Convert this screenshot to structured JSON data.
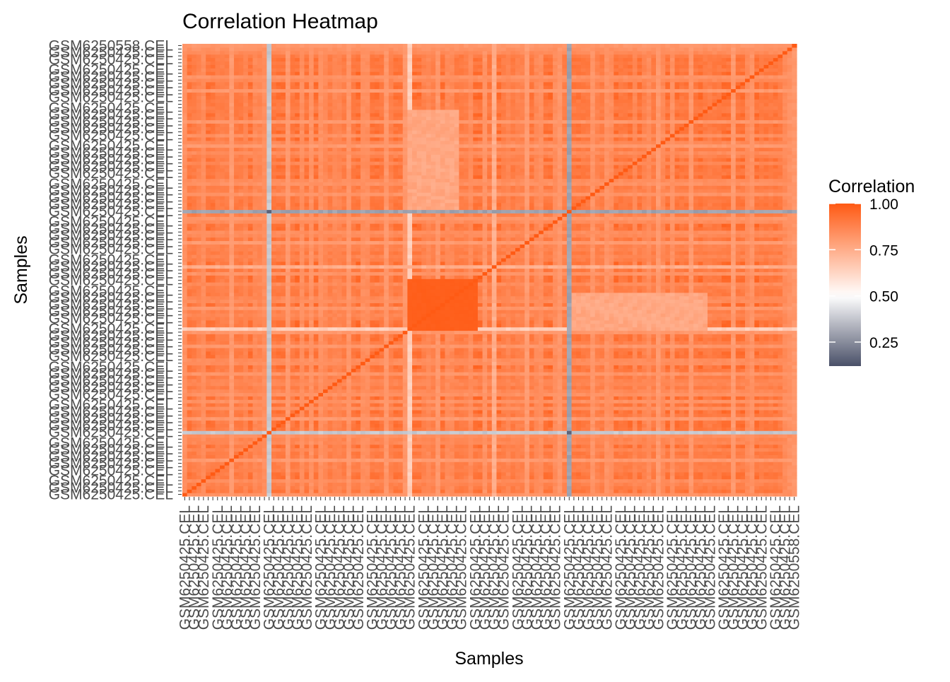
{
  "chart_data": {
    "type": "heatmap",
    "title": "Correlation Heatmap",
    "xlabel": "Samples",
    "ylabel": "Samples",
    "n_samples": 131,
    "first_label": "GSM6250425.CEL",
    "last_label": "GSM6250558.CEL",
    "legend": {
      "title": "Correlation",
      "ticks": [
        "1.00",
        "0.75",
        "0.50",
        "0.25"
      ],
      "tick_values": [
        1.0,
        0.75,
        0.5,
        0.25
      ],
      "range": [
        0.12,
        1.0
      ],
      "placement": "right",
      "colors": {
        "low": "#4a5068",
        "mid": "#ffffff",
        "high": "#ff5a14"
      }
    },
    "value_model": {
      "diagonal": 1.0,
      "base_range": [
        0.8,
        0.97
      ],
      "low_samples": [
        {
          "index": 18,
          "value": 0.36
        },
        {
          "index": 82,
          "value": 0.28
        }
      ],
      "light_samples": [
        {
          "index": 48,
          "value": 0.62
        },
        {
          "index": 66,
          "value": 0.72
        }
      ],
      "block_low_corr": [
        {
          "rows": [
            83,
            111
          ],
          "cols": [
            48,
            58
          ],
          "value": 0.74
        }
      ],
      "block_high_corr": [
        {
          "rows": [
            48,
            62
          ],
          "cols": [
            48,
            62
          ],
          "value": 0.99
        }
      ]
    }
  }
}
